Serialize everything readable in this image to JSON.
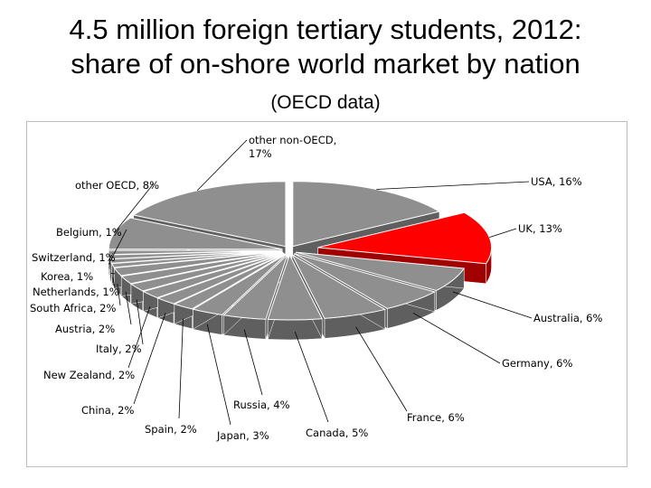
{
  "title_line1": "4.5 million foreign tertiary students, 2012:",
  "title_line2": "share of on-shore world market by nation",
  "subtitle": "(OECD data)",
  "colors": {
    "slice": "#8f8f8f",
    "side": "#5f5f5f",
    "highlight": "#ff0000",
    "highlight_side": "#a00000",
    "stroke": "#ffffff"
  },
  "chart_data": {
    "type": "pie",
    "exploded": true,
    "three_d": true,
    "highlighted": "UK",
    "slices": [
      {
        "name": "USA",
        "value": 16,
        "label": "USA, 16%"
      },
      {
        "name": "UK",
        "value": 13,
        "label": "UK, 13%"
      },
      {
        "name": "Australia",
        "value": 6,
        "label": "Australia, 6%"
      },
      {
        "name": "Germany",
        "value": 6,
        "label": "Germany, 6%"
      },
      {
        "name": "France",
        "value": 6,
        "label": "France, 6%"
      },
      {
        "name": "Canada",
        "value": 5,
        "label": "Canada, 5%"
      },
      {
        "name": "Russia",
        "value": 4,
        "label": "Russia, 4%"
      },
      {
        "name": "Japan",
        "value": 3,
        "label": "Japan, 3%"
      },
      {
        "name": "Spain",
        "value": 2,
        "label": "Spain, 2%"
      },
      {
        "name": "China",
        "value": 2,
        "label": "China, 2%"
      },
      {
        "name": "New Zealand",
        "value": 2,
        "label": "New Zealand, 2%"
      },
      {
        "name": "Italy",
        "value": 2,
        "label": "Italy, 2%"
      },
      {
        "name": "Austria",
        "value": 2,
        "label": "Austria, 2%"
      },
      {
        "name": "South Africa",
        "value": 2,
        "label": "South Africa, 2%"
      },
      {
        "name": "Netherlands",
        "value": 1,
        "label": "Netherlands, 1%"
      },
      {
        "name": "Korea",
        "value": 1,
        "label": "Korea, 1%"
      },
      {
        "name": "Switzerland",
        "value": 1,
        "label": "Switzerland, 1%"
      },
      {
        "name": "Belgium",
        "value": 1,
        "label": "Belgium, 1%"
      },
      {
        "name": "other OECD",
        "value": 8,
        "label": "other OECD, 8%"
      },
      {
        "name": "other non-OECD",
        "value": 17,
        "label": "other non-OECD,\n17%"
      }
    ]
  }
}
